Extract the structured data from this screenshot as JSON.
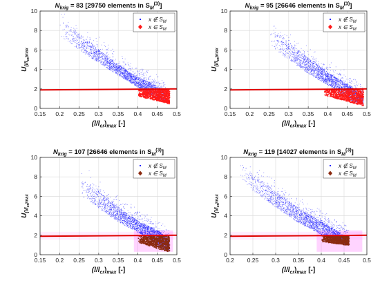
{
  "colors": {
    "blue": "#1a1aff",
    "red": "#ff1a1a",
    "dark_red": "#8b2a10",
    "line": "#e00000",
    "band": "#ff66ff"
  },
  "chart_data": [
    {
      "type": "scatter",
      "title": {
        "main": "N",
        "sub": "krig",
        "rest": " = 83 [29750 elements in S",
        "set_sub": "M",
        "set_sup": "(3)",
        "close": "]"
      },
      "xlabel": {
        "main": "(l/l",
        "sub": "cr",
        "rest": ")",
        "sub2": "max",
        "unit": " [-]"
      },
      "ylabel": {
        "main": "U",
        "sub": "(l/l",
        "subsub": "cr",
        "sub_end": ")max"
      },
      "xlim": [
        0.15,
        0.5
      ],
      "ylim": [
        0,
        10
      ],
      "xticks": [
        "0.15",
        "0.2",
        "0.25",
        "0.3",
        "0.35",
        "0.4",
        "0.45",
        "0.5"
      ],
      "yticks": [
        "0",
        "2",
        "4",
        "6",
        "8",
        "10"
      ],
      "legend": {
        "position": "top-right",
        "entries": [
          {
            "label": "x ∉ S",
            "sub": "M",
            "marker": "dot",
            "color_key": "blue"
          },
          {
            "label": "x ∈ S",
            "sub": "M",
            "marker": "diamond",
            "color_key": "red"
          }
        ]
      },
      "threshold_line": {
        "x": [
          0.15,
          0.5
        ],
        "y": [
          1.9,
          2.0
        ]
      },
      "band": false,
      "in_set_color_key": "red",
      "cloud_upper": [
        [
          0.2,
          9.3
        ],
        [
          0.25,
          7.7
        ],
        [
          0.3,
          6.1
        ],
        [
          0.35,
          4.5
        ],
        [
          0.4,
          3.2
        ],
        [
          0.43,
          2.7
        ],
        [
          0.45,
          2.3
        ],
        [
          0.47,
          1.7
        ]
      ],
      "cloud_lower": [
        [
          0.2,
          7.5
        ],
        [
          0.25,
          6.0
        ],
        [
          0.3,
          4.7
        ],
        [
          0.35,
          3.4
        ],
        [
          0.4,
          2.2
        ],
        [
          0.43,
          1.5
        ],
        [
          0.45,
          1.0
        ],
        [
          0.47,
          0.8
        ]
      ],
      "in_set_region": {
        "x": [
          0.4,
          0.48
        ],
        "y_top": 2.0,
        "y_end": [
          1.3,
          0.5
        ]
      }
    },
    {
      "type": "scatter",
      "title": {
        "main": "N",
        "sub": "krig",
        "rest": " = 95 [26646 elements in S",
        "set_sub": "M",
        "set_sup": "(3)",
        "close": "]"
      },
      "xlabel": {
        "main": "(l/l",
        "sub": "cr",
        "rest": ")",
        "sub2": "max",
        "unit": " [-]"
      },
      "ylabel": {
        "main": "U",
        "sub": "(l/l",
        "subsub": "cr",
        "sub_end": ")max"
      },
      "xlim": [
        0.15,
        0.5
      ],
      "ylim": [
        0,
        10
      ],
      "xticks": [
        "0.15",
        "0.2",
        "0.25",
        "0.3",
        "0.35",
        "0.4",
        "0.45",
        "0.5"
      ],
      "yticks": [
        "0",
        "2",
        "4",
        "6",
        "8",
        "10"
      ],
      "legend": {
        "position": "top-right",
        "entries": [
          {
            "label": "x ∉ S",
            "sub": "M",
            "marker": "dot",
            "color_key": "blue"
          },
          {
            "label": "x ∈ S",
            "sub": "M",
            "marker": "diamond",
            "color_key": "red"
          }
        ]
      },
      "threshold_line": {
        "x": [
          0.15,
          0.5
        ],
        "y": [
          1.9,
          2.0
        ]
      },
      "band": false,
      "in_set_color_key": "red",
      "cloud_upper": [
        [
          0.25,
          8.5
        ],
        [
          0.3,
          6.8
        ],
        [
          0.35,
          5.2
        ],
        [
          0.4,
          3.7
        ],
        [
          0.43,
          3.0
        ],
        [
          0.46,
          2.3
        ],
        [
          0.49,
          1.2
        ]
      ],
      "cloud_lower": [
        [
          0.25,
          6.4
        ],
        [
          0.3,
          5.0
        ],
        [
          0.35,
          3.6
        ],
        [
          0.4,
          2.4
        ],
        [
          0.43,
          1.6
        ],
        [
          0.46,
          0.8
        ],
        [
          0.49,
          0.4
        ]
      ],
      "in_set_region": {
        "x": [
          0.39,
          0.49
        ],
        "y_top": 2.0,
        "y_end": [
          1.4,
          0.3
        ]
      }
    },
    {
      "type": "scatter",
      "title": {
        "main": "N",
        "sub": "krig",
        "rest": " = 107 [26646 elements in S",
        "set_sub": "M",
        "set_sup": "(3)",
        "close": "]"
      },
      "xlabel": {
        "main": "(l/l",
        "sub": "cr",
        "rest": ")",
        "sub2": "max",
        "unit": " [-]"
      },
      "ylabel": {
        "main": "U",
        "sub": "(l/l",
        "subsub": "cr",
        "sub_end": ")max"
      },
      "xlim": [
        0.15,
        0.5
      ],
      "ylim": [
        0,
        10
      ],
      "xticks": [
        "0.15",
        "0.2",
        "0.25",
        "0.3",
        "0.35",
        "0.4",
        "0.45",
        "0.5"
      ],
      "yticks": [
        "0",
        "2",
        "4",
        "6",
        "8",
        "10"
      ],
      "legend": {
        "position": "top-right",
        "entries": [
          {
            "label": "x ∉ S",
            "sub": "M",
            "marker": "dot",
            "color_key": "blue"
          },
          {
            "label": "x ∈ S",
            "sub": "M",
            "marker": "diamond",
            "color_key": "dark_red"
          }
        ]
      },
      "threshold_line": {
        "x": [
          0.15,
          0.5
        ],
        "y": [
          1.9,
          2.0
        ]
      },
      "band": true,
      "in_set_color_key": "dark_red",
      "cloud_upper": [
        [
          0.25,
          8.3
        ],
        [
          0.3,
          6.5
        ],
        [
          0.35,
          4.9
        ],
        [
          0.4,
          3.5
        ],
        [
          0.43,
          2.9
        ],
        [
          0.46,
          2.3
        ],
        [
          0.48,
          1.3
        ]
      ],
      "cloud_lower": [
        [
          0.25,
          6.2
        ],
        [
          0.3,
          4.8
        ],
        [
          0.35,
          3.4
        ],
        [
          0.4,
          2.3
        ],
        [
          0.43,
          1.6
        ],
        [
          0.46,
          0.7
        ],
        [
          0.48,
          0.3
        ]
      ],
      "in_set_region": {
        "x": [
          0.4,
          0.48
        ],
        "y_top": 2.0,
        "y_end": [
          1.3,
          0.3
        ]
      }
    },
    {
      "type": "scatter",
      "title": {
        "main": "N",
        "sub": "krig",
        "rest": " = 119 [14027 elements in S",
        "set_sub": "M",
        "set_sup": "(3)",
        "close": "]"
      },
      "xlabel": {
        "main": "(l/l",
        "sub": "cr",
        "rest": ")",
        "sub2": "max",
        "unit": " [-]"
      },
      "ylabel": {
        "main": "U",
        "sub": "(l/l",
        "subsub": "cr",
        "sub_end": ")max"
      },
      "xlim": [
        0.2,
        0.5
      ],
      "ylim": [
        0,
        10
      ],
      "xticks": [
        "0.2",
        "0.25",
        "0.3",
        "0.35",
        "0.4",
        "0.45",
        "0.5"
      ],
      "yticks": [
        "0",
        "2",
        "4",
        "6",
        "8",
        "10"
      ],
      "legend": {
        "position": "top-right",
        "entries": [
          {
            "label": "x ∉ S",
            "sub": "M",
            "marker": "dot",
            "color_key": "blue"
          },
          {
            "label": "x ∈ S",
            "sub": "M",
            "marker": "diamond",
            "color_key": "dark_red"
          }
        ]
      },
      "threshold_line": {
        "x": [
          0.2,
          0.5
        ],
        "y": [
          1.9,
          2.0
        ]
      },
      "band": true,
      "in_set_color_key": "dark_red",
      "cloud_upper": [
        [
          0.22,
          9.7
        ],
        [
          0.25,
          8.3
        ],
        [
          0.3,
          6.5
        ],
        [
          0.35,
          4.8
        ],
        [
          0.4,
          3.4
        ],
        [
          0.43,
          2.6
        ],
        [
          0.46,
          1.7
        ]
      ],
      "cloud_lower": [
        [
          0.22,
          8.0
        ],
        [
          0.25,
          6.6
        ],
        [
          0.3,
          4.9
        ],
        [
          0.35,
          3.3
        ],
        [
          0.4,
          2.1
        ],
        [
          0.43,
          1.4
        ],
        [
          0.46,
          1.0
        ]
      ],
      "in_set_region": {
        "x": [
          0.4,
          0.46
        ],
        "y_top": 2.0,
        "y_end": [
          1.4,
          1.0
        ]
      }
    }
  ]
}
